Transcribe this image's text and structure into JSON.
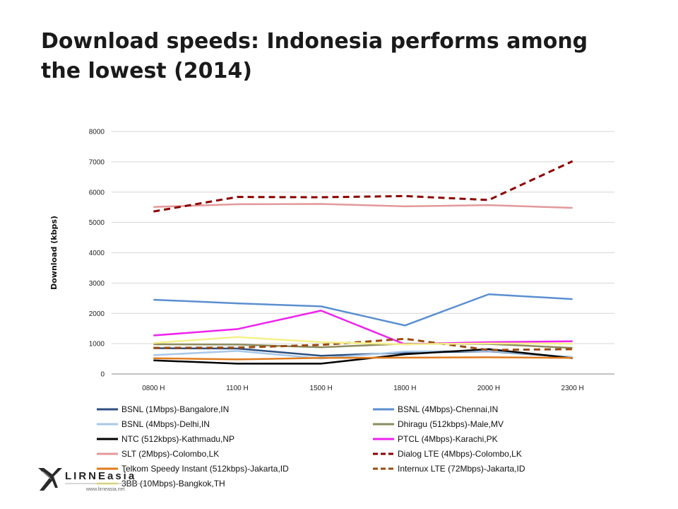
{
  "slide": {
    "title_line1": "Download speeds: Indonesia performs among",
    "title_line2": "the lowest (2014)"
  },
  "logo": {
    "name": "LIRNEasia",
    "url": "www.lirneasia.net"
  },
  "chart_data": {
    "type": "line",
    "title": "",
    "xlabel": "",
    "ylabel": "Download (kbps)",
    "ylim": [
      0,
      8000
    ],
    "yticks": [
      0,
      1000,
      2000,
      3000,
      4000,
      5000,
      6000,
      7000,
      8000
    ],
    "categories": [
      "0800 H",
      "1100 H",
      "1500 H",
      "1800 H",
      "2000 H",
      "2300 H"
    ],
    "grid": "horizontal",
    "legend_position": "bottom",
    "series": [
      {
        "name": "BSNL (1Mbps)-Bangalore,IN",
        "color": "#2f4f7f",
        "dash": "solid",
        "values": [
          850,
          840,
          600,
          700,
          750,
          550
        ]
      },
      {
        "name": "BSNL (4Mbps)-Chennai,IN",
        "color": "#5b8fd0",
        "dash": "solid",
        "values": [
          2450,
          2330,
          2230,
          1600,
          2630,
          2470
        ]
      },
      {
        "name": "BSNL (4Mbps)-Delhi,IN",
        "color": "#a8c8e8",
        "dash": "solid",
        "values": [
          620,
          760,
          510,
          740,
          760,
          560
        ]
      },
      {
        "name": "Dhiragu (512kbps)-Male,MV",
        "color": "#8c8c60",
        "dash": "solid",
        "values": [
          980,
          970,
          880,
          1000,
          990,
          860
        ]
      },
      {
        "name": "NTC (512kbps)-Kathmadu,NP",
        "color": "#000000",
        "dash": "solid",
        "values": [
          450,
          340,
          340,
          650,
          820,
          520
        ]
      },
      {
        "name": "PTCL (4Mbps)-Karachi,PK",
        "color": "#ee22ee",
        "dash": "solid",
        "values": [
          1270,
          1480,
          2090,
          980,
          1050,
          1080
        ]
      },
      {
        "name": "SLT (2Mbps)-Colombo,LK",
        "color": "#e3999a",
        "dash": "solid",
        "values": [
          5510,
          5600,
          5610,
          5530,
          5570,
          5480
        ]
      },
      {
        "name": "Dialog LTE (4Mbps)-Colombo,LK",
        "color": "#8b0000",
        "dash": "dashed",
        "values": [
          5360,
          5840,
          5830,
          5870,
          5740,
          7020
        ]
      },
      {
        "name": "Telkom Speedy Instant (512kbps)-Jakarta,ID",
        "color": "#e07b1e",
        "dash": "solid",
        "values": [
          520,
          480,
          530,
          540,
          550,
          530
        ]
      },
      {
        "name": "Internux LTE (72Mbps)-Jakarta,ID",
        "color": "#9a4a10",
        "dash": "dashed",
        "values": [
          860,
          870,
          960,
          1160,
          790,
          820
        ]
      },
      {
        "name": "3BB (10Mbps)-Bangkok,TH",
        "color": "#f5f08a",
        "dash": "solid",
        "values": [
          1020,
          1220,
          1050,
          980,
          1010,
          1000
        ]
      }
    ]
  }
}
